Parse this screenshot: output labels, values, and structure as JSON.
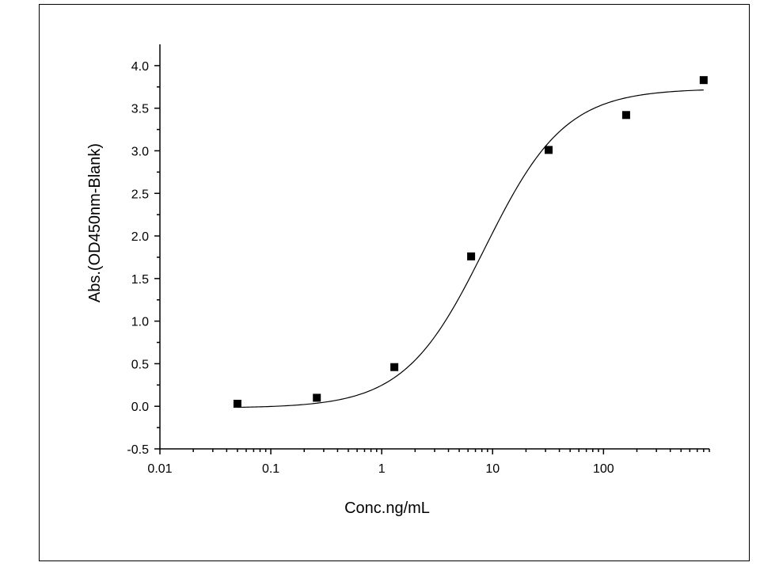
{
  "chart_data": {
    "type": "scatter",
    "title": "",
    "xlabel": "Conc.ng/mL",
    "ylabel": "Abs.(OD450nm-Blank)",
    "x_scale": "log",
    "xlim": [
      0.01,
      900
    ],
    "ylim": [
      -0.5,
      4.25
    ],
    "x_ticks": [
      0.01,
      0.1,
      1,
      10,
      100
    ],
    "x_tick_labels": [
      "0.01",
      "0.1",
      "1",
      "10",
      "100"
    ],
    "y_ticks": [
      -0.5,
      0.0,
      0.5,
      1.0,
      1.5,
      2.0,
      2.5,
      3.0,
      3.5,
      4.0
    ],
    "y_tick_labels": [
      "-0.5",
      "0.0",
      "0.5",
      "1.0",
      "1.5",
      "2.0",
      "2.5",
      "3.0",
      "3.5",
      "4.0"
    ],
    "grid": false,
    "legend": "none",
    "series": [
      {
        "marker": "square",
        "color": "#000000",
        "x": [
          0.05,
          0.26,
          1.3,
          6.4,
          32,
          160,
          800
        ],
        "y": [
          0.03,
          0.1,
          0.46,
          1.76,
          3.01,
          3.42,
          3.83
        ]
      }
    ],
    "fit": {
      "type": "4PL",
      "bottom": -0.02,
      "top": 3.73,
      "ec50": 8.5,
      "hill": 1.2,
      "x_range": [
        0.05,
        800
      ]
    }
  }
}
